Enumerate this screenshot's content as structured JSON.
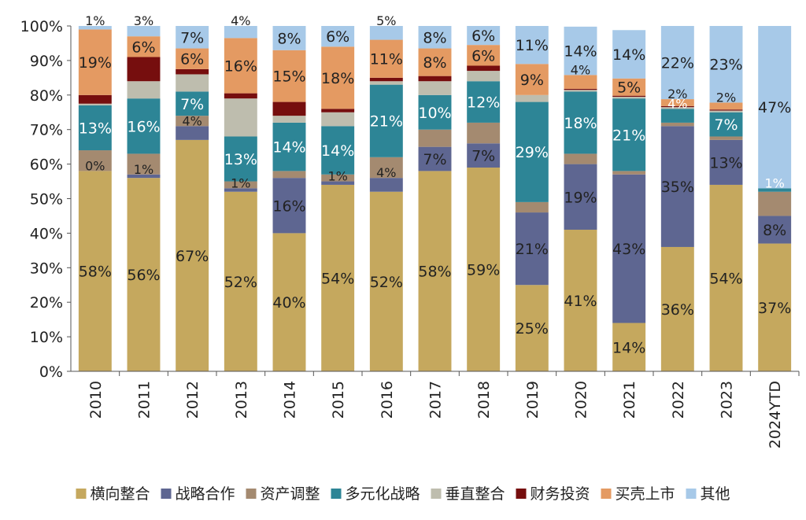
{
  "chart_data": {
    "type": "bar",
    "stacked": true,
    "normalized": true,
    "categories": [
      "2010",
      "2011",
      "2012",
      "2013",
      "2014",
      "2015",
      "2016",
      "2017",
      "2018",
      "2019",
      "2020",
      "2021",
      "2022",
      "2023",
      "2024YTD"
    ],
    "ylim": [
      0,
      100
    ],
    "yticks": [
      "0%",
      "10%",
      "20%",
      "30%",
      "40%",
      "50%",
      "60%",
      "70%",
      "80%",
      "90%",
      "100%"
    ],
    "grid": false,
    "legend_position": "bottom",
    "series": [
      {
        "name": "横向整合",
        "color": "#C5A85E",
        "values": [
          58,
          56,
          67,
          52,
          40,
          54,
          52,
          58,
          59,
          25,
          41,
          14,
          36,
          54,
          37
        ],
        "labels": [
          "58%",
          "56%",
          "67%",
          "52%",
          "40%",
          "54%",
          "52%",
          "58%",
          "59%",
          "25%",
          "41%",
          "14%",
          "36%",
          "54%",
          "37%"
        ]
      },
      {
        "name": "战略合作",
        "color": "#5E6691",
        "values": [
          0,
          1,
          4,
          1,
          16,
          1,
          4,
          7,
          7,
          21,
          19,
          43,
          35,
          13,
          8
        ],
        "labels": [
          "0%",
          "1%",
          "4%",
          "1%",
          "16%",
          "1%",
          "4%",
          "7%",
          "7%",
          "21%",
          "19%",
          "43%",
          "35%",
          "13%",
          "8%"
        ]
      },
      {
        "name": "资产调整",
        "color": "#A48A70",
        "values": [
          6,
          6,
          3,
          2,
          2,
          2,
          6,
          5,
          6,
          3,
          3,
          1,
          1,
          1,
          7
        ],
        "labels": [
          "",
          "",
          "",
          "",
          "",
          "",
          "",
          "",
          "",
          "",
          "",
          "",
          "",
          "",
          ""
        ]
      },
      {
        "name": "多元化战略",
        "color": "#2D8596",
        "values": [
          13,
          16,
          7,
          13,
          14,
          14,
          21,
          10,
          12,
          29,
          18,
          21,
          4,
          7,
          1
        ],
        "labels": [
          "13%",
          "16%",
          "7%",
          "13%",
          "14%",
          "14%",
          "21%",
          "10%",
          "12%",
          "29%",
          "18%",
          "21%",
          "4%",
          "7%",
          "1%"
        ]
      },
      {
        "name": "垂直整合",
        "color": "#BEBDAE",
        "values": [
          0.5,
          5,
          5,
          11,
          2,
          4,
          1,
          4,
          3,
          2,
          0.5,
          0.5,
          0.5,
          0.5,
          0
        ],
        "labels": [
          "",
          "",
          "",
          "",
          "",
          "",
          "",
          "",
          "",
          "",
          "",
          "",
          "",
          "",
          ""
        ]
      },
      {
        "name": "财务投资",
        "color": "#760E0E",
        "values": [
          2.5,
          7,
          1.5,
          1.5,
          4,
          1,
          1,
          1.5,
          1.5,
          0,
          0.3,
          0.3,
          0.3,
          0.3,
          0
        ],
        "labels": [
          "",
          "",
          "",
          "",
          "",
          "",
          "",
          "",
          "",
          "",
          "",
          "",
          "",
          "",
          ""
        ]
      },
      {
        "name": "买壳上市",
        "color": "#E49A62",
        "values": [
          19,
          6,
          6,
          16,
          15,
          18,
          11,
          8,
          6,
          9,
          4,
          5,
          2,
          2,
          0
        ],
        "labels": [
          "19%",
          "6%",
          "6%",
          "16%",
          "15%",
          "18%",
          "11%",
          "8%",
          "6%",
          "9%",
          "4%",
          "5%",
          "2%",
          "2%",
          ""
        ]
      },
      {
        "name": "其他",
        "color": "#A7C9E8",
        "values": [
          1,
          3,
          7,
          4,
          8,
          6,
          5,
          8,
          6,
          11,
          14,
          14,
          22,
          23,
          47
        ],
        "labels": [
          "1%",
          "3%",
          "7%",
          "4%",
          "8%",
          "6%",
          "5%",
          "8%",
          "6%",
          "11%",
          "14%",
          "14%",
          "22%",
          "23%",
          "47%"
        ]
      }
    ]
  }
}
